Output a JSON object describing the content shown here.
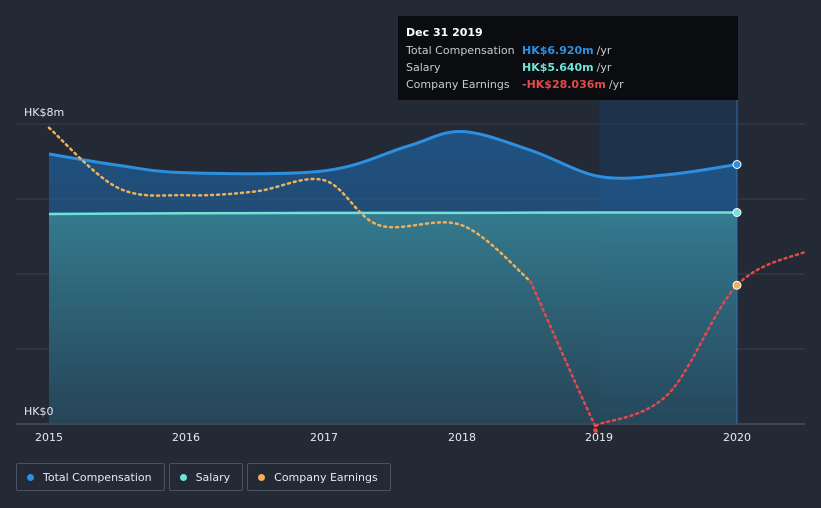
{
  "chart_data": {
    "type": "line",
    "y_tick_labels": [
      "HK$8m",
      "HK$0"
    ],
    "x_tick_labels": [
      "2015",
      "2016",
      "2017",
      "2018",
      "2019",
      "2020"
    ],
    "ylim": [
      0,
      8
    ],
    "series": [
      {
        "name": "Total Compensation",
        "color": "#2d8fe0",
        "points": [
          [
            2015.0,
            7.2
          ],
          [
            2015.5,
            6.9
          ],
          [
            2016.0,
            6.7
          ],
          [
            2017.0,
            6.75
          ],
          [
            2017.6,
            7.4
          ],
          [
            2018.0,
            7.8
          ],
          [
            2018.5,
            7.3
          ],
          [
            2019.0,
            6.6
          ],
          [
            2019.5,
            6.65
          ],
          [
            2020.0,
            6.92
          ]
        ]
      },
      {
        "name": "Salary",
        "color": "#6fe3d8",
        "points": [
          [
            2015.0,
            5.6
          ],
          [
            2016.0,
            5.62
          ],
          [
            2017.0,
            5.63
          ],
          [
            2018.0,
            5.63
          ],
          [
            2019.0,
            5.64
          ],
          [
            2020.0,
            5.64
          ]
        ]
      },
      {
        "name": "Company Earnings",
        "color": "#f0b05a",
        "negative_color": "#e6494a",
        "points": [
          [
            2015.0,
            7.9
          ],
          [
            2015.5,
            6.3
          ],
          [
            2016.0,
            6.1
          ],
          [
            2016.5,
            6.2
          ],
          [
            2017.0,
            6.5
          ],
          [
            2017.4,
            5.3
          ],
          [
            2018.0,
            5.3
          ],
          [
            2018.5,
            3.8
          ],
          [
            2018.95,
            0.1
          ],
          [
            2019.0,
            0.0
          ],
          [
            2019.5,
            0.8
          ],
          [
            2020.0,
            3.7
          ],
          [
            2020.5,
            4.6
          ]
        ]
      }
    ]
  },
  "tooltip": {
    "date": "Dec 31 2019",
    "rows": [
      {
        "label": "Total Compensation",
        "value": "HK$6.920m",
        "unit": "/yr",
        "color": "#2d8fe0"
      },
      {
        "label": "Salary",
        "value": "HK$5.640m",
        "unit": "/yr",
        "color": "#6fe3d8"
      },
      {
        "label": "Company Earnings",
        "value": "-HK$28.036m",
        "unit": "/yr",
        "color": "#e6494a"
      }
    ]
  },
  "legend": [
    {
      "label": "Total Compensation",
      "color": "#2d8fe0"
    },
    {
      "label": "Salary",
      "color": "#6fe3d8"
    },
    {
      "label": "Company Earnings",
      "color": "#f0b05a"
    }
  ]
}
